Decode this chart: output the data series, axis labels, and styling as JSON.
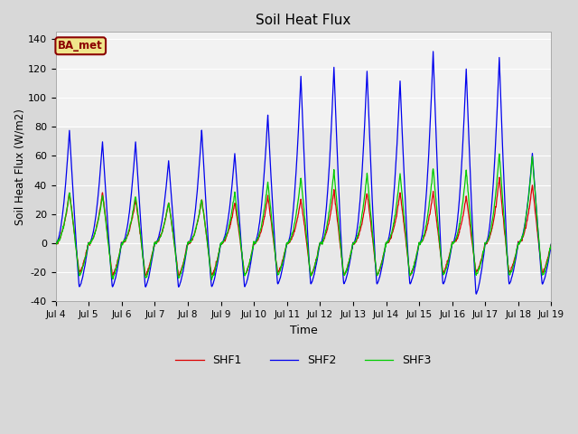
{
  "title": "Soil Heat Flux",
  "ylabel": "Soil Heat Flux (W/m2)",
  "xlabel": "Time",
  "ylim": [
    -40,
    145
  ],
  "yticks": [
    -40,
    -20,
    0,
    20,
    40,
    60,
    80,
    100,
    120,
    140
  ],
  "bg_color": "#d8d8d8",
  "plot_bg_color": "#e8e8e8",
  "shaded_band": [
    80,
    140
  ],
  "shaded_color": "#cccccc",
  "shf1_color": "#dd0000",
  "shf2_color": "#0000ee",
  "shf3_color": "#00cc00",
  "legend_label": "BA_met",
  "series_labels": [
    "SHF1",
    "SHF2",
    "SHF3"
  ],
  "start_day": 4,
  "end_day": 19,
  "n_days": 15,
  "points_per_day": 96,
  "shf1_peaks": [
    35,
    35,
    30,
    28,
    30,
    28,
    32,
    30,
    36,
    35,
    35,
    35,
    32,
    45,
    40
  ],
  "shf2_peaks": [
    78,
    70,
    70,
    57,
    78,
    62,
    88,
    115,
    121,
    119,
    112,
    132,
    120,
    128,
    62
  ],
  "shf3_peaks": [
    35,
    33,
    33,
    28,
    30,
    35,
    42,
    45,
    50,
    48,
    48,
    52,
    50,
    62,
    60
  ],
  "shf1_min": [
    -20,
    -22,
    -22,
    -22,
    -22,
    -22,
    -20,
    -22,
    -22,
    -22,
    -22,
    -20,
    -20,
    -20,
    -20
  ],
  "shf2_min": [
    -30,
    -30,
    -30,
    -30,
    -30,
    -30,
    -28,
    -28,
    -28,
    -28,
    -28,
    -28,
    -35,
    -28,
    -28
  ],
  "shf3_min": [
    -22,
    -24,
    -24,
    -24,
    -24,
    -22,
    -22,
    -22,
    -22,
    -22,
    -22,
    -22,
    -22,
    -22,
    -22
  ]
}
